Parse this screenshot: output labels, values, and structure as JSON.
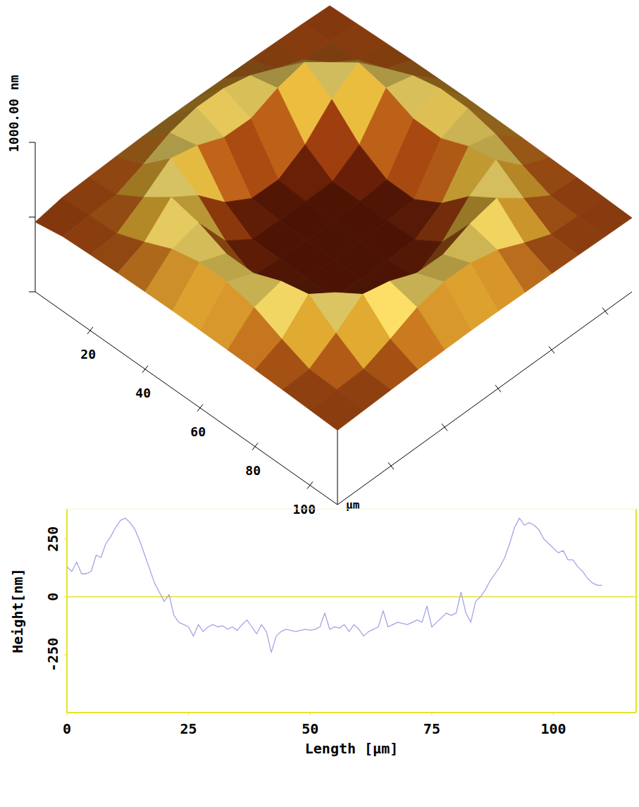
{
  "chart_data": [
    {
      "type": "surface",
      "xlim": [
        0,
        110
      ],
      "ylim": [
        0,
        110
      ],
      "zlim": [
        0,
        1000
      ],
      "xticks": [
        20,
        40,
        60,
        80,
        100
      ],
      "yticks": [
        20,
        40,
        60,
        80,
        100
      ],
      "tick_labels": "x",
      "x_label": "µm",
      "zticks": [
        {
          "value": 1000,
          "label": "1000.00"
        }
      ],
      "z_minor_ticks": [
        0,
        500
      ],
      "z_label": "nm",
      "x": [
        0,
        10,
        20,
        30,
        40,
        50,
        60,
        70,
        80,
        90,
        100,
        110
      ],
      "y": [
        0,
        10,
        20,
        30,
        40,
        50,
        60,
        70,
        80,
        90,
        100,
        110
      ],
      "z": [
        [
          467,
          500,
          508,
          515,
          520,
          522,
          520,
          516,
          512,
          506,
          500,
          490
        ],
        [
          500,
          511,
          520,
          592,
          675,
          716,
          712,
          670,
          588,
          516,
          508,
          498
        ],
        [
          508,
          520,
          632,
          762,
          720,
          645,
          640,
          715,
          758,
          628,
          515,
          505
        ],
        [
          515,
          592,
          762,
          645,
          470,
          366,
          362,
          466,
          640,
          756,
          588,
          512
        ],
        [
          518,
          674,
          720,
          470,
          352,
          348,
          346,
          350,
          466,
          716,
          670,
          515
        ],
        [
          520,
          716,
          644,
          366,
          350,
          345,
          342,
          348,
          362,
          640,
          712,
          518
        ],
        [
          520,
          714,
          642,
          364,
          348,
          344,
          340,
          346,
          360,
          638,
          710,
          516
        ],
        [
          518,
          672,
          718,
          468,
          350,
          346,
          345,
          348,
          464,
          714,
          668,
          514
        ],
        [
          515,
          590,
          760,
          642,
          468,
          362,
          360,
          464,
          638,
          754,
          586,
          510
        ],
        [
          510,
          518,
          630,
          760,
          718,
          642,
          638,
          714,
          756,
          626,
          514,
          506
        ],
        [
          504,
          511,
          518,
          590,
          672,
          714,
          710,
          668,
          586,
          514,
          506,
          500
        ],
        [
          497,
          504,
          510,
          515,
          518,
          520,
          518,
          514,
          510,
          505,
          500,
          495
        ]
      ]
    },
    {
      "type": "line",
      "x_label": "Length [µm]",
      "y_label": "Height[nm]",
      "xlim": [
        0,
        117
      ],
      "ylim": [
        -500,
        380
      ],
      "xticks": [
        0,
        25,
        50,
        75,
        100
      ],
      "yticks": [
        -250,
        0,
        250
      ],
      "reference_line": 0,
      "color": "#a4a4e4",
      "x": [
        0,
        1,
        2,
        3,
        4,
        5,
        6,
        7,
        8,
        9,
        10,
        11,
        12,
        13,
        14,
        15,
        16,
        17,
        18,
        19,
        20,
        21,
        22,
        23,
        24,
        25,
        26,
        27,
        28,
        29,
        30,
        31,
        32,
        33,
        34,
        35,
        36,
        37,
        38,
        39,
        40,
        41,
        42,
        43,
        44,
        45,
        46,
        47,
        48,
        49,
        50,
        51,
        52,
        53,
        54,
        55,
        56,
        57,
        58,
        59,
        60,
        61,
        62,
        63,
        64,
        65,
        66,
        67,
        68,
        69,
        70,
        71,
        72,
        73,
        74,
        75,
        76,
        77,
        78,
        79,
        80,
        81,
        82,
        83,
        84,
        85,
        86,
        87,
        88,
        89,
        90,
        91,
        92,
        93,
        94,
        95,
        96,
        97,
        98,
        99,
        100,
        101,
        102,
        103,
        104,
        105,
        106,
        107,
        108,
        109,
        110
      ],
      "values": [
        130,
        110,
        150,
        100,
        100,
        110,
        180,
        170,
        230,
        260,
        300,
        330,
        340,
        320,
        290,
        240,
        180,
        120,
        60,
        20,
        -20,
        10,
        -80,
        -110,
        -120,
        -130,
        -170,
        -120,
        -150,
        -130,
        -120,
        -130,
        -125,
        -140,
        -130,
        -145,
        -120,
        -100,
        -130,
        -160,
        -120,
        -150,
        -240,
        -170,
        -150,
        -140,
        -145,
        -150,
        -145,
        -140,
        -145,
        -140,
        -130,
        -70,
        -140,
        -130,
        -135,
        -120,
        -150,
        -120,
        -140,
        -170,
        -150,
        -140,
        -130,
        -60,
        -130,
        -120,
        -110,
        -115,
        -120,
        -110,
        -100,
        -110,
        -40,
        -130,
        -110,
        -90,
        -70,
        -80,
        -70,
        20,
        -70,
        -110,
        -20,
        0,
        30,
        70,
        100,
        130,
        170,
        230,
        300,
        340,
        310,
        320,
        310,
        290,
        250,
        230,
        210,
        190,
        200,
        160,
        160,
        130,
        110,
        80,
        60,
        50,
        50
      ]
    }
  ]
}
